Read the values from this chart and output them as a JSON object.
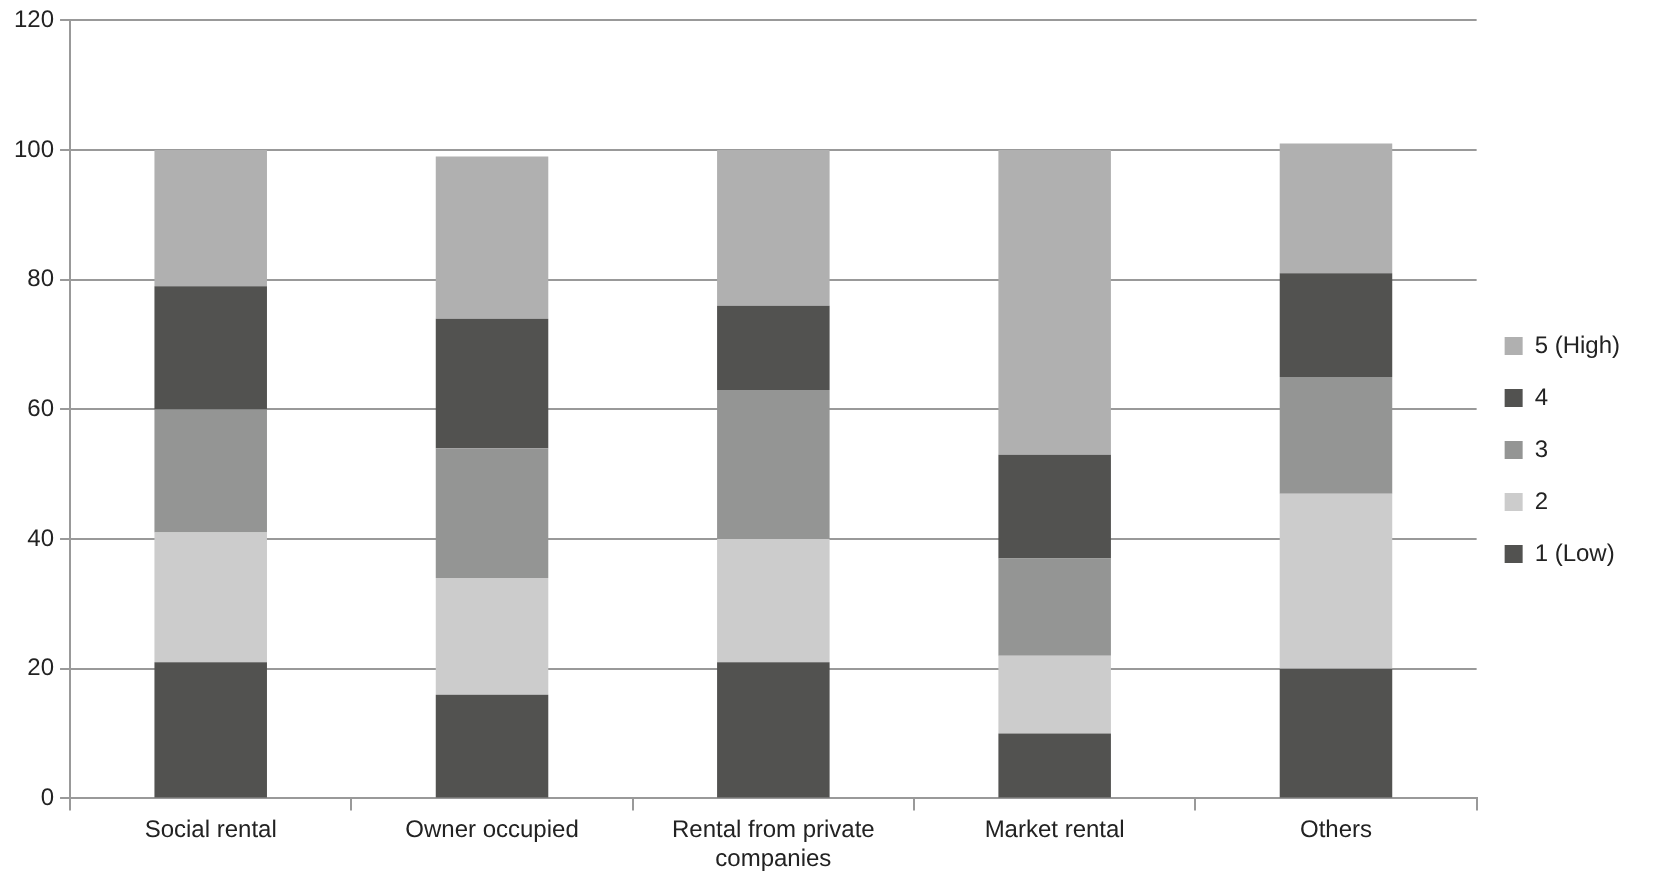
{
  "chart_data": {
    "type": "bar",
    "stacked": true,
    "categories": [
      "Social rental",
      "Owner occupied",
      "Rental from private companies",
      "Market rental",
      "Others"
    ],
    "series": [
      {
        "name": "1 (Low)",
        "color": "#525250",
        "values": [
          21,
          16,
          21,
          10,
          20
        ]
      },
      {
        "name": "2",
        "color": "#cccccc",
        "values": [
          20,
          18,
          19,
          12,
          27
        ]
      },
      {
        "name": "3",
        "color": "#949594",
        "values": [
          19,
          20,
          23,
          15,
          18
        ]
      },
      {
        "name": "4",
        "color": "#525250",
        "values": [
          19,
          20,
          13,
          16,
          16
        ]
      },
      {
        "name": "5 (High)",
        "color": "#b0b0b0",
        "values": [
          21,
          25,
          24,
          47,
          20
        ]
      }
    ],
    "ylim": [
      0,
      120
    ],
    "yticks": [
      0,
      20,
      40,
      60,
      80,
      100,
      120
    ],
    "grid": "y",
    "legend": "right"
  }
}
